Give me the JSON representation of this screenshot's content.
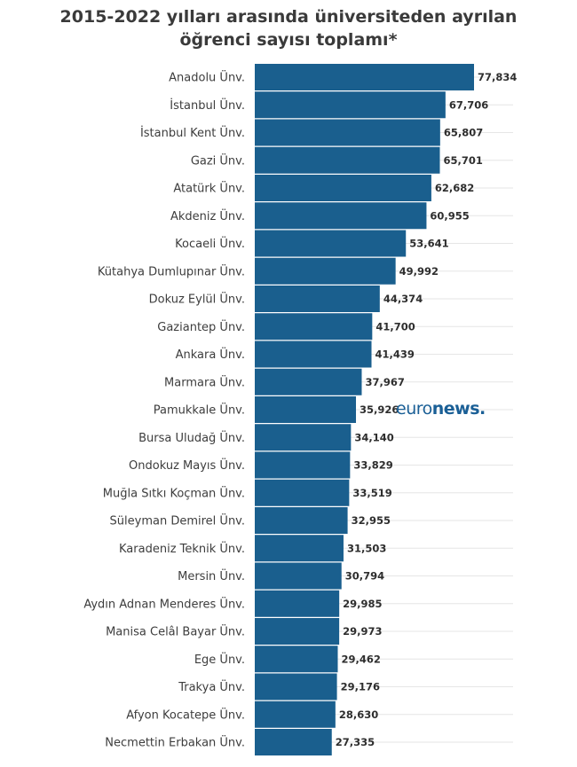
{
  "chart_data": {
    "type": "bar",
    "orientation": "horizontal",
    "title": [
      "2015-2022 yılları arasında üniversiteden ayrılan",
      "öğrenci sayısı toplamı*"
    ],
    "categories": [
      "Anadolu Ünv.",
      "İstanbul Ünv.",
      "İstanbul Kent Ünv.",
      "Gazi Ünv.",
      "Atatürk Ünv.",
      "Akdeniz Ünv.",
      "Kocaeli Ünv.",
      "Kütahya Dumlupınar Ünv.",
      "Dokuz Eylül Ünv.",
      "Gaziantep Ünv.",
      "Ankara Ünv.",
      "Marmara Ünv.",
      "Pamukkale Ünv.",
      "Bursa Uludağ Ünv.",
      "Ondokuz Mayıs Ünv.",
      "Muğla Sıtkı Koçman Ünv.",
      "Süleyman Demirel Ünv.",
      "Karadeniz Teknik Ünv.",
      "Mersin Ünv.",
      "Aydın Adnan Menderes Ünv.",
      "Manisa Celâl Bayar Ünv.",
      "Ege Ünv.",
      "Trakya Ünv.",
      "Afyon Kocatepe Ünv.",
      "Necmettin Erbakan Ünv."
    ],
    "values": [
      77834,
      67706,
      65807,
      65701,
      62682,
      60955,
      53641,
      49992,
      44374,
      41700,
      41439,
      37967,
      35926,
      34140,
      33829,
      33519,
      32955,
      31503,
      30794,
      29985,
      29973,
      29462,
      29176,
      28630,
      27335
    ],
    "value_labels": [
      "77,834",
      "67,706",
      "65,807",
      "65,701",
      "62,682",
      "60,955",
      "53,641",
      "49,992",
      "44,374",
      "41,700",
      "41,439",
      "37,967",
      "35,926",
      "34,140",
      "33,829",
      "33,519",
      "32,955",
      "31,503",
      "30,794",
      "29,985",
      "29,973",
      "29,462",
      "29,176",
      "28,630",
      "27,335"
    ],
    "xlim": [
      0,
      77834
    ],
    "grid": true,
    "legend": "none",
    "bar_color": "#1a5f8e"
  },
  "logo": {
    "part_a": "euro",
    "part_b": "news."
  },
  "colors": {
    "bar": "#1a5f8e",
    "logo": "#1a5f96",
    "grid": "#e6e6e6"
  }
}
